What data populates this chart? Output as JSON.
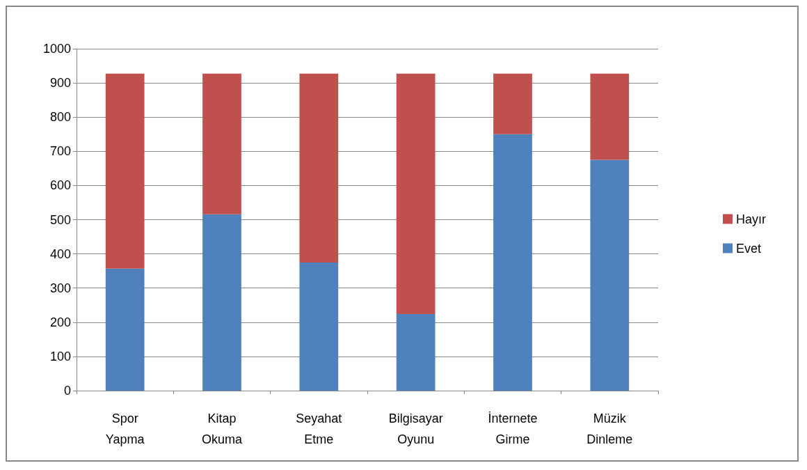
{
  "chart_data": {
    "type": "bar",
    "stacked": true,
    "categories": [
      "Spor\nYapma",
      "Kitap\nOkuma",
      "Seyahat\nEtme",
      "Bilgisayar\nOyunu",
      "İnternete\nGirme",
      "Müzik\nDinleme"
    ],
    "series": [
      {
        "name": "Evet",
        "color": "#4f81bd",
        "values": [
          357,
          516,
          375,
          224,
          750,
          675
        ]
      },
      {
        "name": "Hayır",
        "color": "#c0504d",
        "values": [
          570,
          411,
          552,
          703,
          177,
          252
        ]
      }
    ],
    "ylim": [
      0,
      1000
    ],
    "yticks": [
      0,
      100,
      200,
      300,
      400,
      500,
      600,
      700,
      800,
      900,
      1000
    ],
    "grid": "y",
    "legend": "right"
  }
}
